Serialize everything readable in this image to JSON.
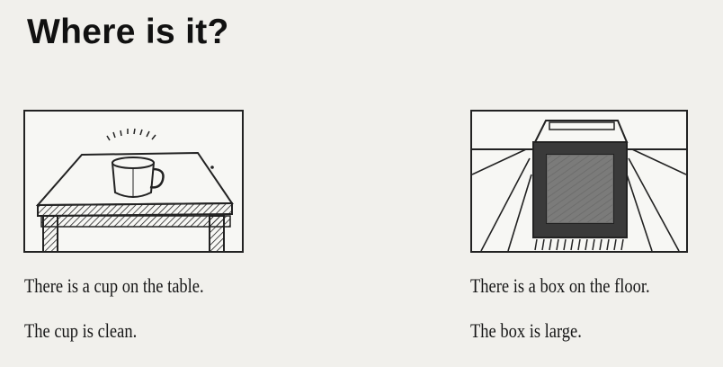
{
  "slide": {
    "title": "Where is it?"
  },
  "scenes": [
    {
      "id": "cup",
      "illustration_icon": "cup-on-table-icon",
      "sentence_1": "There is a cup on the table.",
      "sentence_2": "The cup is clean."
    },
    {
      "id": "box",
      "illustration_icon": "box-on-floor-icon",
      "sentence_1": "There is a box on the floor.",
      "sentence_2": "The box is large."
    }
  ],
  "colors": {
    "background": "#f1f0ec",
    "ink": "#161616"
  }
}
